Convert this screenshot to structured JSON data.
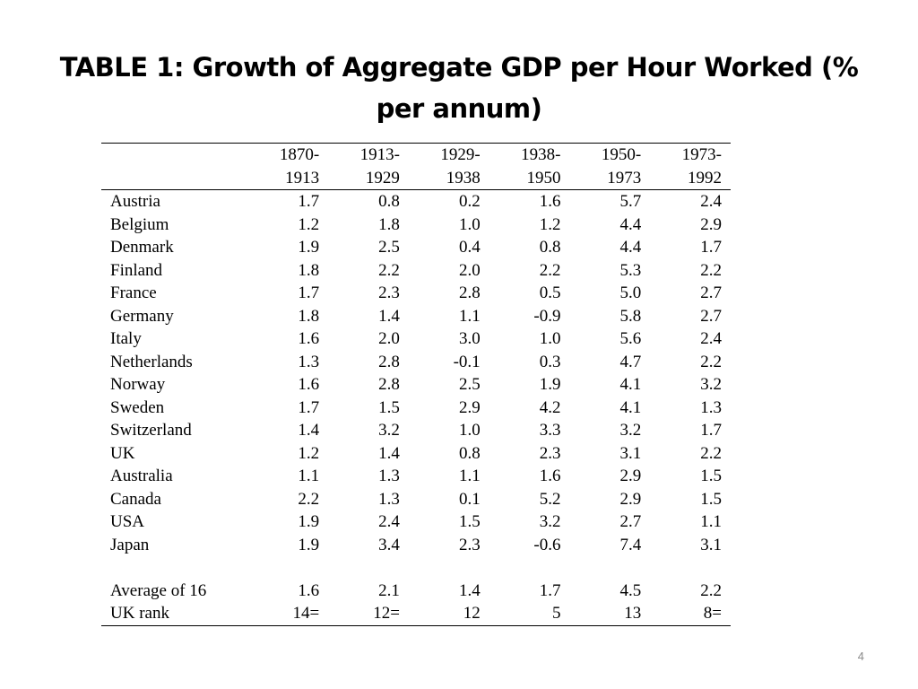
{
  "title": "TABLE 1: Growth of Aggregate GDP per Hour Worked (% per annum)",
  "table": {
    "columns_top": [
      "1870-",
      "1913-",
      "1929-",
      "1938-",
      "1950-",
      "1973-"
    ],
    "columns_bottom": [
      "1913",
      "1929",
      "1938",
      "1950",
      "1973",
      "1992"
    ],
    "rows": [
      {
        "country": "Austria",
        "values": [
          "1.7",
          "0.8",
          "0.2",
          "1.6",
          "5.7",
          "2.4"
        ]
      },
      {
        "country": "Belgium",
        "values": [
          "1.2",
          "1.8",
          "1.0",
          "1.2",
          "4.4",
          "2.9"
        ]
      },
      {
        "country": "Denmark",
        "values": [
          "1.9",
          "2.5",
          "0.4",
          "0.8",
          "4.4",
          "1.7"
        ]
      },
      {
        "country": "Finland",
        "values": [
          "1.8",
          "2.2",
          "2.0",
          "2.2",
          "5.3",
          "2.2"
        ]
      },
      {
        "country": "France",
        "values": [
          "1.7",
          "2.3",
          "2.8",
          "0.5",
          "5.0",
          "2.7"
        ]
      },
      {
        "country": "Germany",
        "values": [
          "1.8",
          "1.4",
          "1.1",
          "-0.9",
          "5.8",
          "2.7"
        ]
      },
      {
        "country": "Italy",
        "values": [
          "1.6",
          "2.0",
          "3.0",
          "1.0",
          "5.6",
          "2.4"
        ]
      },
      {
        "country": "Netherlands",
        "values": [
          "1.3",
          "2.8",
          "-0.1",
          "0.3",
          "4.7",
          "2.2"
        ]
      },
      {
        "country": "Norway",
        "values": [
          "1.6",
          "2.8",
          "2.5",
          "1.9",
          "4.1",
          "3.2"
        ]
      },
      {
        "country": "Sweden",
        "values": [
          "1.7",
          "1.5",
          "2.9",
          "4.2",
          "4.1",
          "1.3"
        ]
      },
      {
        "country": "Switzerland",
        "values": [
          "1.4",
          "3.2",
          "1.0",
          "3.3",
          "3.2",
          "1.7"
        ]
      },
      {
        "country": "UK",
        "values": [
          "1.2",
          "1.4",
          "0.8",
          "2.3",
          "3.1",
          "2.2"
        ]
      },
      {
        "country": "Australia",
        "values": [
          "1.1",
          "1.3",
          "1.1",
          "1.6",
          "2.9",
          "1.5"
        ]
      },
      {
        "country": "Canada",
        "values": [
          "2.2",
          "1.3",
          "0.1",
          "5.2",
          "2.9",
          "1.5"
        ]
      },
      {
        "country": "USA",
        "values": [
          "1.9",
          "2.4",
          "1.5",
          "3.2",
          "2.7",
          "1.1"
        ]
      },
      {
        "country": "Japan",
        "values": [
          "1.9",
          "3.4",
          "2.3",
          "-0.6",
          "7.4",
          "3.1"
        ]
      }
    ],
    "summary_rows": [
      {
        "country": "Average of 16",
        "values": [
          "1.6",
          "2.1",
          "1.4",
          "1.7",
          "4.5",
          "2.2"
        ]
      },
      {
        "country": "UK rank",
        "values": [
          "14=",
          "12=",
          "12",
          "5",
          "13",
          "8="
        ]
      }
    ]
  },
  "page_number": "4"
}
